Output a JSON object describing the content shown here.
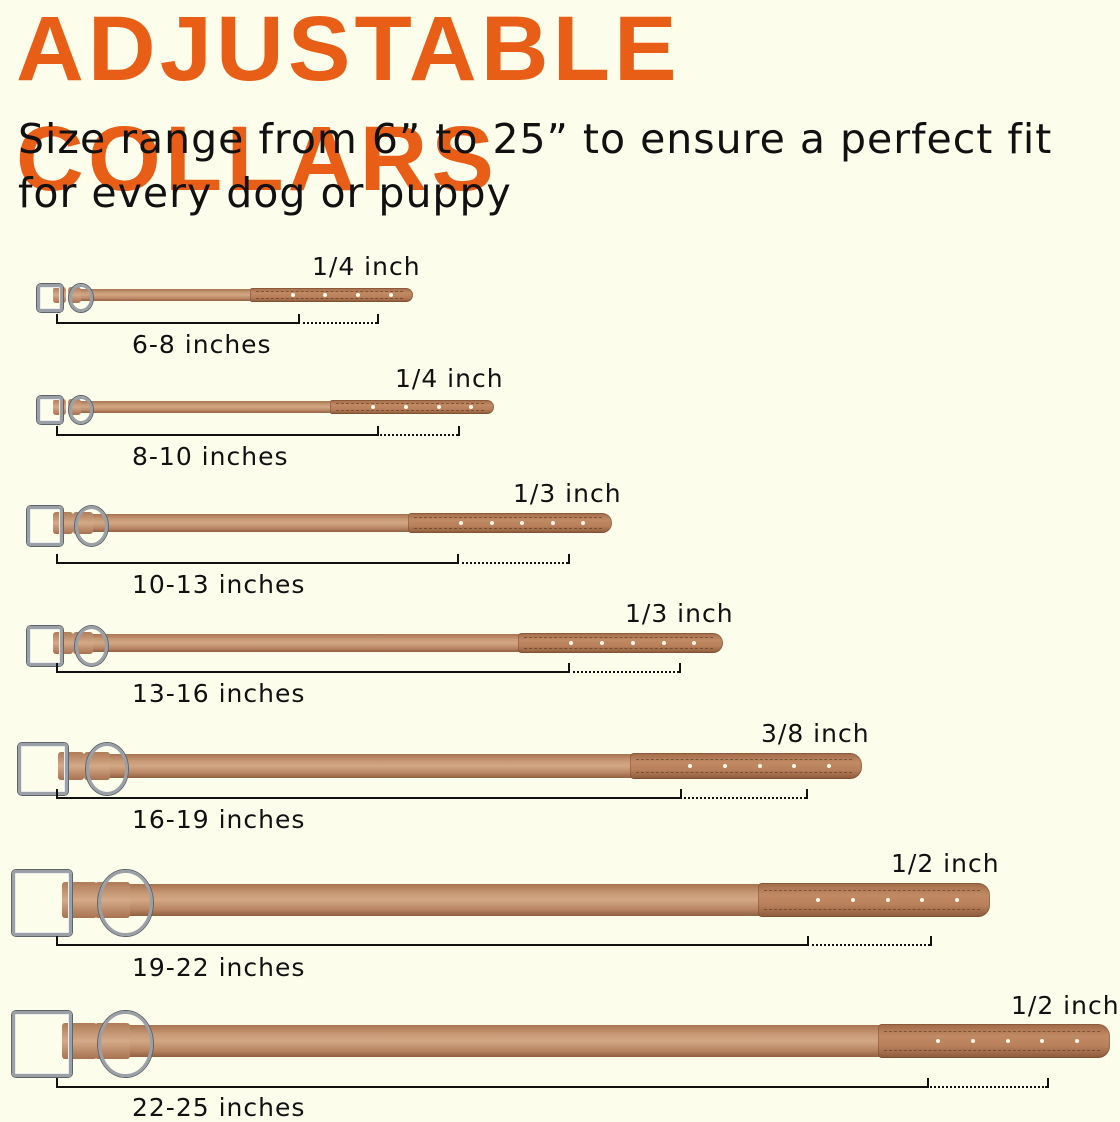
{
  "header": {
    "title": "ADJUSTABLE COLLARS",
    "subtitle": "Size range from 6” to 25” to ensure a perfect fit for every dog or puppy"
  },
  "colors": {
    "background": "#fdfdec",
    "title": "#e85e17",
    "text": "#111111",
    "leather": "#c99a76",
    "hardware": "#9aa0a6"
  },
  "collars": [
    {
      "size": "6-8 inches",
      "width": "1/4 inch"
    },
    {
      "size": "8-10 inches",
      "width": "1/4 inch"
    },
    {
      "size": "10-13 inches",
      "width": "1/3 inch"
    },
    {
      "size": "13-16 inches",
      "width": "1/3 inch"
    },
    {
      "size": "16-19 inches",
      "width": "3/8 inch"
    },
    {
      "size": "19-22 inches",
      "width": "1/2 inch"
    },
    {
      "size": "22-25 inches",
      "width": "1/2 inch"
    }
  ]
}
